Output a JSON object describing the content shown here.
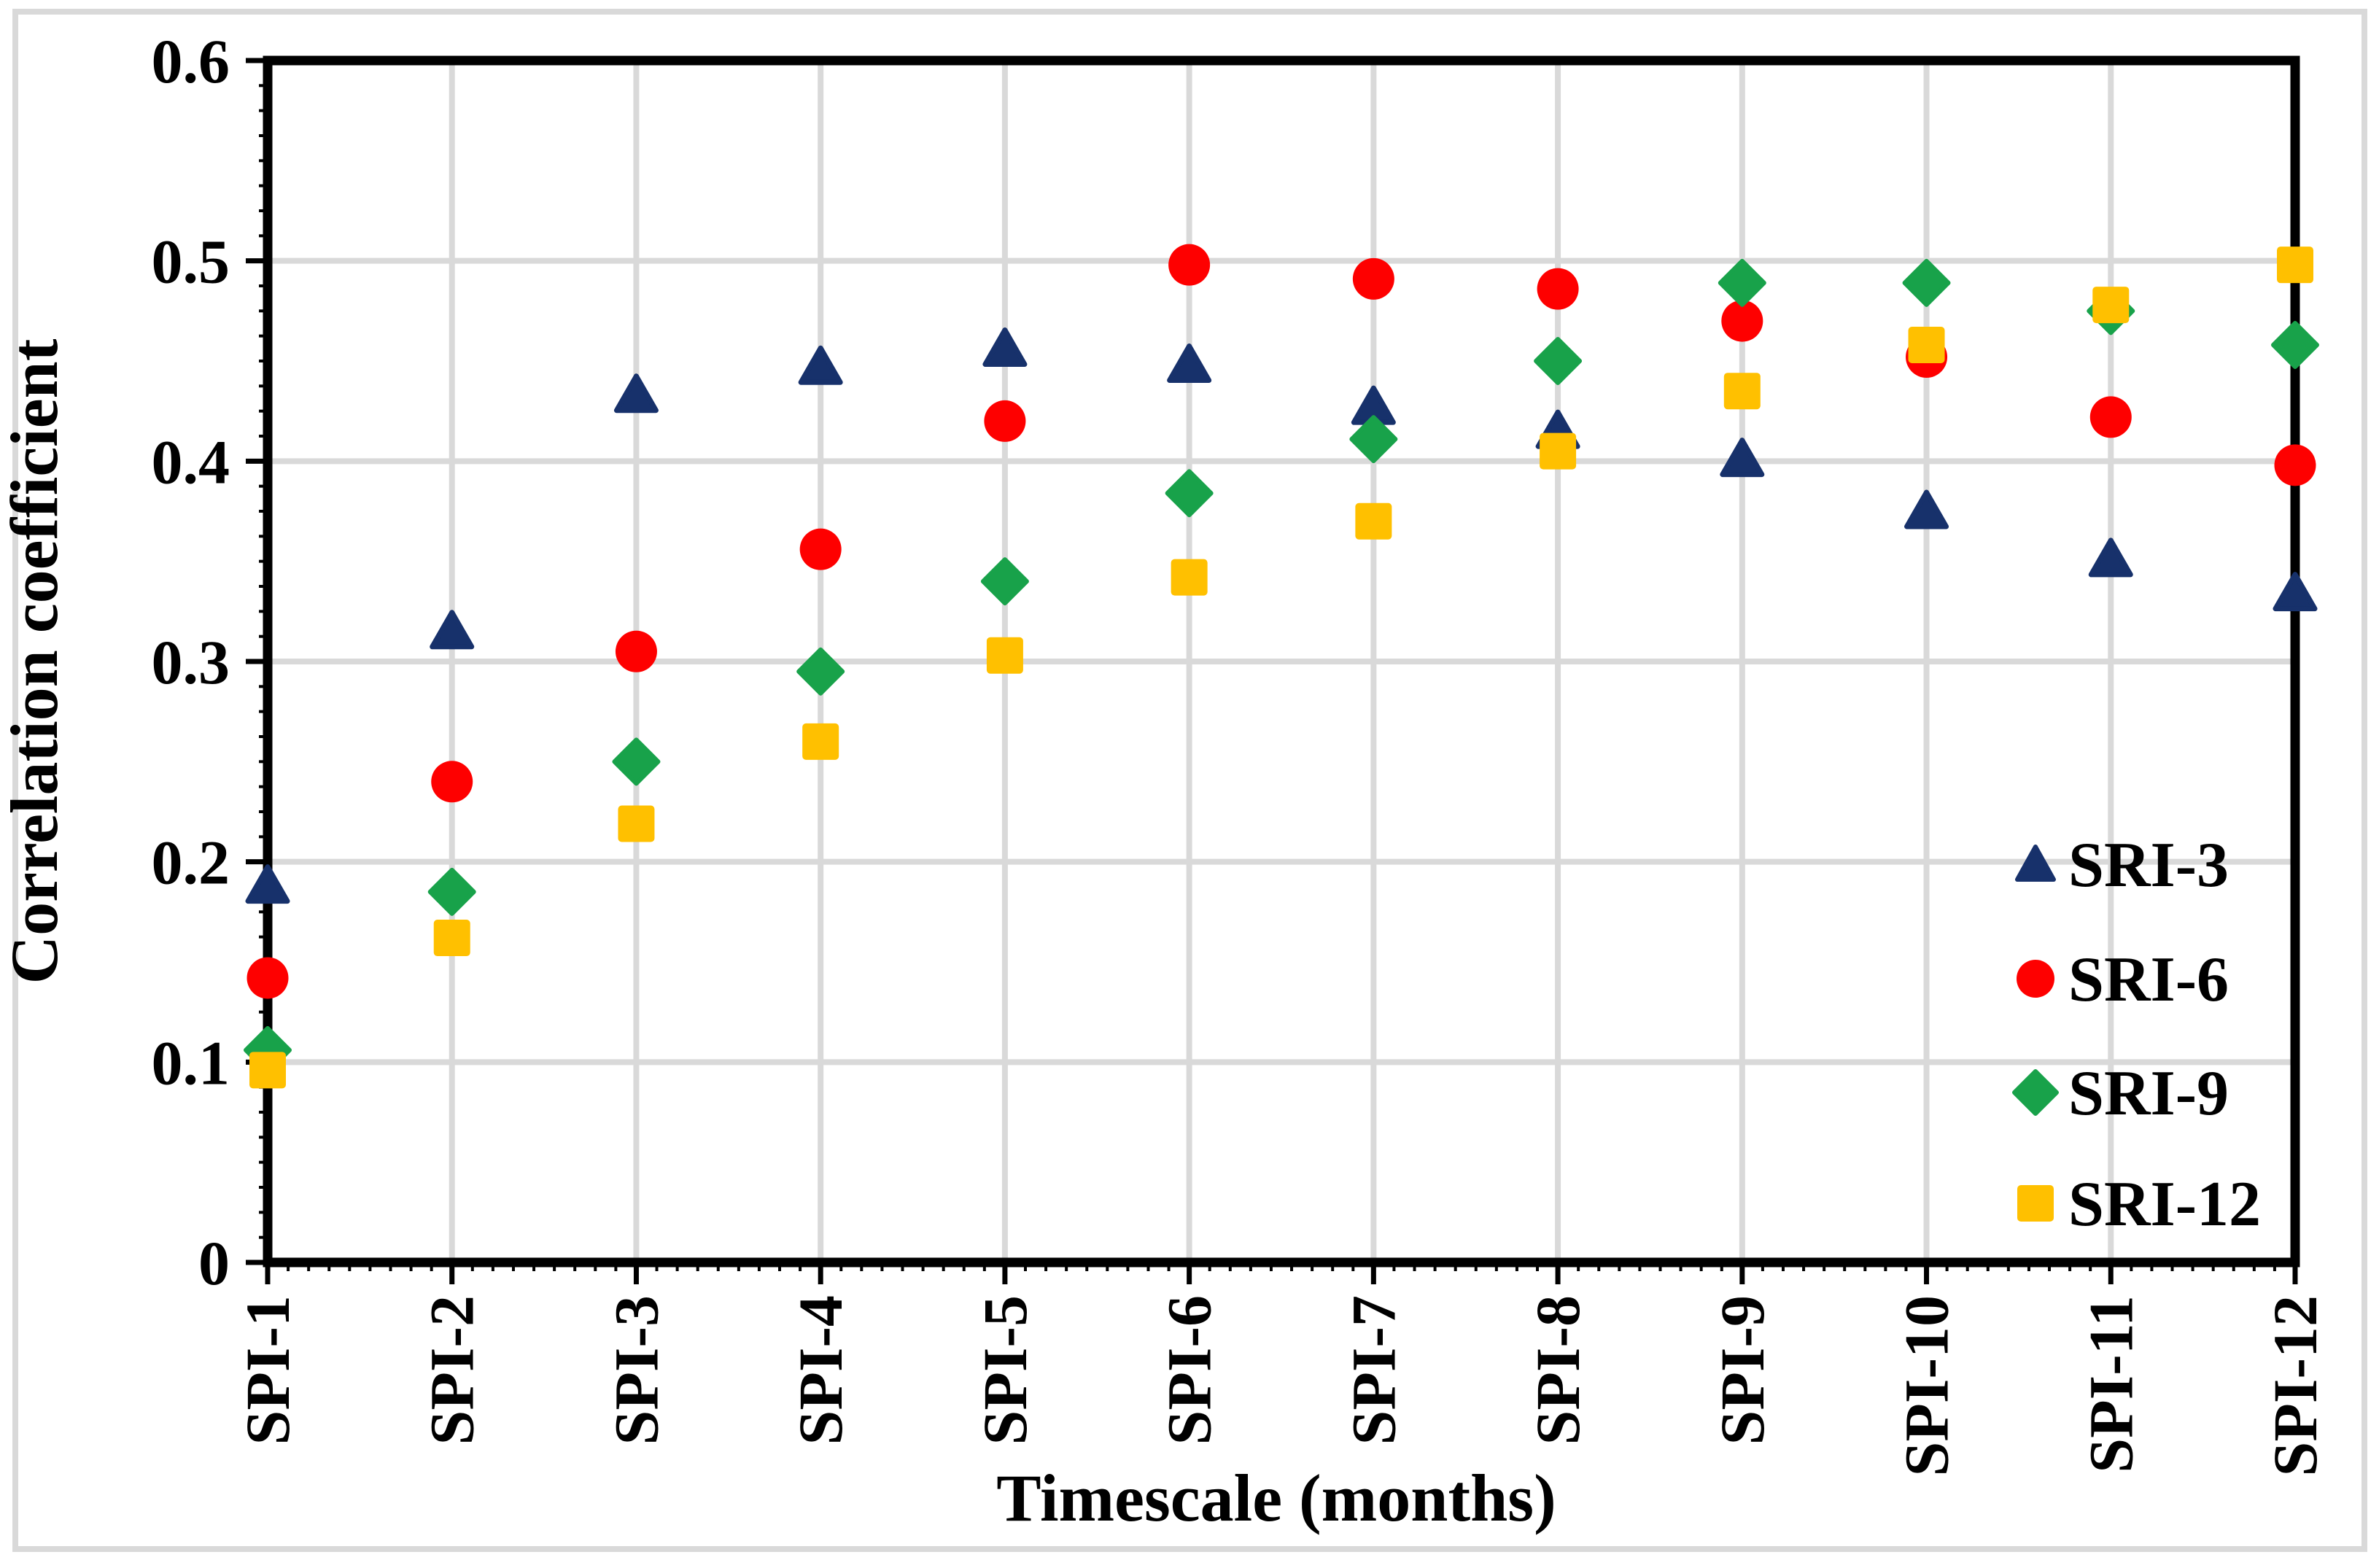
{
  "figure": {
    "background_color": "#ffffff",
    "outer_border_color": "#d9d9d9",
    "plot_border_color": "#000000",
    "gridline_color": "#d9d9d9"
  },
  "chart_data": {
    "type": "scatter",
    "title": "",
    "xlabel": "Timescale (months)",
    "ylabel": "Correlation coefficient",
    "categories": [
      "SPI-1",
      "SPI-2",
      "SPI-3",
      "SPI-4",
      "SPI-5",
      "SPI-6",
      "SPI-7",
      "SPI-8",
      "SPI-9",
      "SPI-10",
      "SPI-11",
      "SPI-12"
    ],
    "y_ticks": [
      "0",
      "0.1",
      "0.2",
      "0.3",
      "0.4",
      "0.5",
      "0.6"
    ],
    "ylim": [
      0,
      0.6
    ],
    "y_major_unit": 0.1,
    "y_minor_unit": 0.0125,
    "grid": true,
    "legend_position": "inside-right",
    "series": [
      {
        "name": "SRI-3",
        "marker": "triangle",
        "color": "#17316b",
        "values": [
          0.188,
          0.315,
          0.433,
          0.447,
          0.456,
          0.448,
          0.427,
          0.415,
          0.401,
          0.375,
          0.351,
          0.334
        ]
      },
      {
        "name": "SRI-6",
        "marker": "circle",
        "color": "#fe0000",
        "values": [
          0.142,
          0.24,
          0.305,
          0.356,
          0.42,
          0.498,
          0.491,
          0.486,
          0.47,
          0.452,
          0.422,
          0.398
        ]
      },
      {
        "name": "SRI-9",
        "marker": "diamond",
        "color": "#18a24a",
        "values": [
          0.106,
          0.185,
          0.25,
          0.295,
          0.34,
          0.384,
          0.411,
          0.45,
          0.489,
          0.489,
          0.475,
          0.458
        ]
      },
      {
        "name": "SRI-12",
        "marker": "square",
        "color": "#ffc000",
        "values": [
          0.096,
          0.162,
          0.219,
          0.26,
          0.303,
          0.342,
          0.37,
          0.405,
          0.435,
          0.458,
          0.478,
          0.498
        ]
      }
    ]
  }
}
